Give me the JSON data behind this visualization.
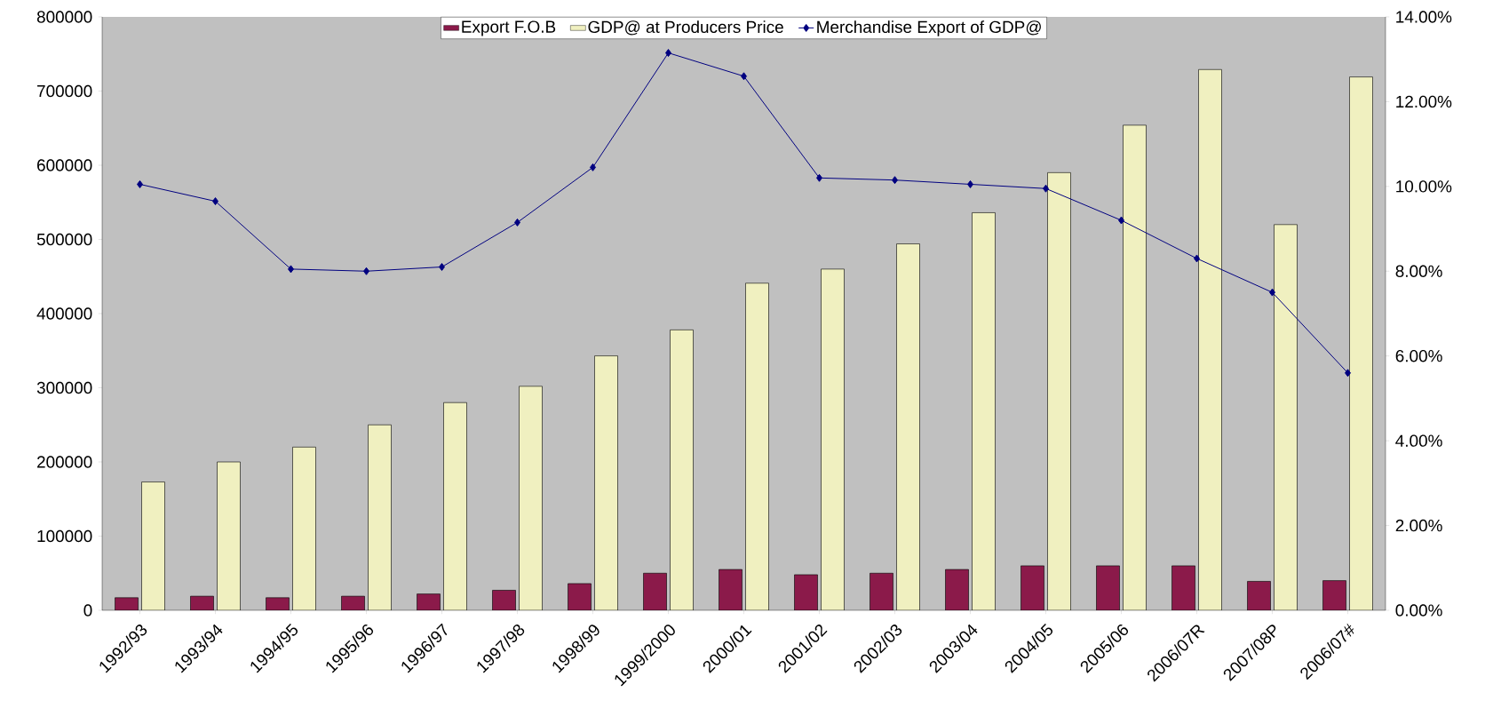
{
  "chart_data": {
    "type": "bar",
    "categories": [
      "1992/93",
      "1993/94",
      "1994/95",
      "1995/96",
      "1996/97",
      "1997/98",
      "1998/99",
      "1999/2000",
      "2000/01",
      "2001/02",
      "2002/03",
      "2003/04",
      "2004/05",
      "2005/06",
      "2006/07R",
      "2007/08P",
      "2006/07#"
    ],
    "series": [
      {
        "name": "Export F.O.B",
        "color": "#8b1a4a",
        "values": [
          17000,
          19000,
          17000,
          19000,
          22000,
          27000,
          36000,
          50000,
          55000,
          48000,
          50000,
          55000,
          60000,
          60000,
          60000,
          39000,
          40000
        ]
      },
      {
        "name": "GDP@ at Producers Price",
        "color": "#f0f0c0",
        "values": [
          173000,
          200000,
          220000,
          250000,
          280000,
          302000,
          343000,
          378000,
          441000,
          460000,
          494000,
          536000,
          590000,
          654000,
          729000,
          520000,
          719000
        ]
      },
      {
        "name": "Merchandise Export of GDP@",
        "type": "line",
        "axis": "y2",
        "color": "#000080",
        "values": [
          10.05,
          9.65,
          8.05,
          8.0,
          8.1,
          9.15,
          10.45,
          13.15,
          12.6,
          10.2,
          10.15,
          10.05,
          9.95,
          9.2,
          8.3,
          7.5,
          5.6
        ]
      }
    ],
    "ylim": [
      0,
      800000
    ],
    "yticks": [
      0,
      100000,
      200000,
      300000,
      400000,
      500000,
      600000,
      700000,
      800000
    ],
    "y2lim": [
      0,
      14
    ],
    "y2ticks": [
      {
        "value": 0,
        "label": "0.00%"
      },
      {
        "value": 2,
        "label": "2.00%"
      },
      {
        "value": 4,
        "label": "4.00%"
      },
      {
        "value": 6,
        "label": "6.00%"
      },
      {
        "value": 8,
        "label": "8.00%"
      },
      {
        "value": 10,
        "label": "10.00%"
      },
      {
        "value": 12,
        "label": "12.00%"
      },
      {
        "value": 14,
        "label": "14.00%"
      }
    ],
    "marker": "diamond",
    "legend": "top",
    "grid": false
  }
}
